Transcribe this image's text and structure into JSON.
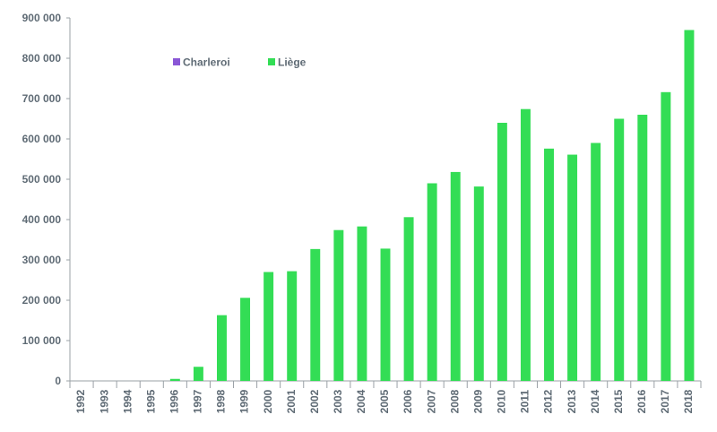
{
  "chart_data": {
    "type": "bar",
    "title": "",
    "xlabel": "",
    "ylabel": "",
    "ylim": [
      0,
      900000
    ],
    "yticks": [
      0,
      100000,
      200000,
      300000,
      400000,
      500000,
      600000,
      700000,
      800000,
      900000
    ],
    "ytick_labels": [
      "0",
      "100 000",
      "200 000",
      "300 000",
      "400 000",
      "500 000",
      "600 000",
      "700 000",
      "800 000",
      "900 000"
    ],
    "grid": false,
    "legend_position": "top-left",
    "categories": [
      "1992",
      "1993",
      "1994",
      "1995",
      "1996",
      "1997",
      "1998",
      "1999",
      "2000",
      "2001",
      "2002",
      "2003",
      "2004",
      "2005",
      "2006",
      "2007",
      "2008",
      "2009",
      "2010",
      "2011",
      "2012",
      "2013",
      "2014",
      "2015",
      "2016",
      "2017",
      "2018"
    ],
    "series": [
      {
        "name": "Charleroi",
        "color": "#8a57d6",
        "values": [
          0,
          0,
          0,
          0,
          0,
          0,
          0,
          0,
          0,
          0,
          0,
          0,
          0,
          0,
          0,
          0,
          0,
          0,
          0,
          0,
          0,
          0,
          0,
          0,
          0,
          0,
          0
        ]
      },
      {
        "name": "Liège",
        "color": "#33dd55",
        "values": [
          0,
          0,
          0,
          0,
          5000,
          35000,
          163000,
          206000,
          270000,
          272000,
          327000,
          374000,
          383000,
          328000,
          406000,
          490000,
          518000,
          482000,
          640000,
          674000,
          576000,
          561000,
          590000,
          650000,
          660000,
          716000,
          870000
        ]
      }
    ]
  }
}
